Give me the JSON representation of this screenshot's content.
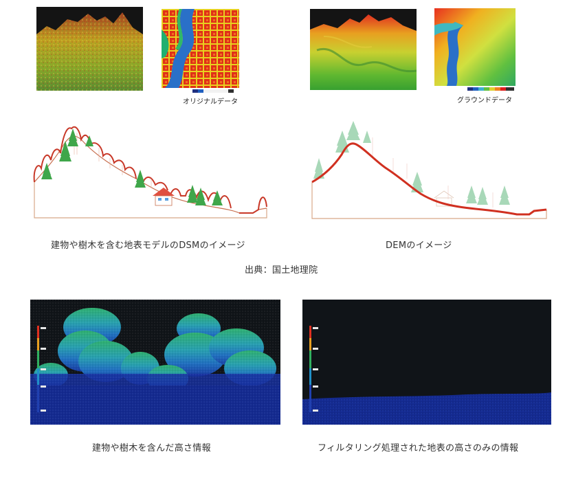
{
  "top_left_panel": {
    "original_label": "オリジナルデータ"
  },
  "top_right_panel": {
    "ground_label": "グラウンドデータ"
  },
  "middle": {
    "dsm_caption": "建物や樹木を含む地表モデルのDSMのイメージ",
    "dem_caption": "DEMのイメージ",
    "source": "出典：国土地理院"
  },
  "bottom": {
    "left_caption": "建物や樹木を含んだ高さ情報",
    "right_caption": "フィルタリング処理された地表の高さのみの情報"
  },
  "colors": {
    "ground_line": "#d03020",
    "tree_green": "#3fa64a",
    "tree_light": "#a8d8b8",
    "dark_bg": "#101418"
  }
}
